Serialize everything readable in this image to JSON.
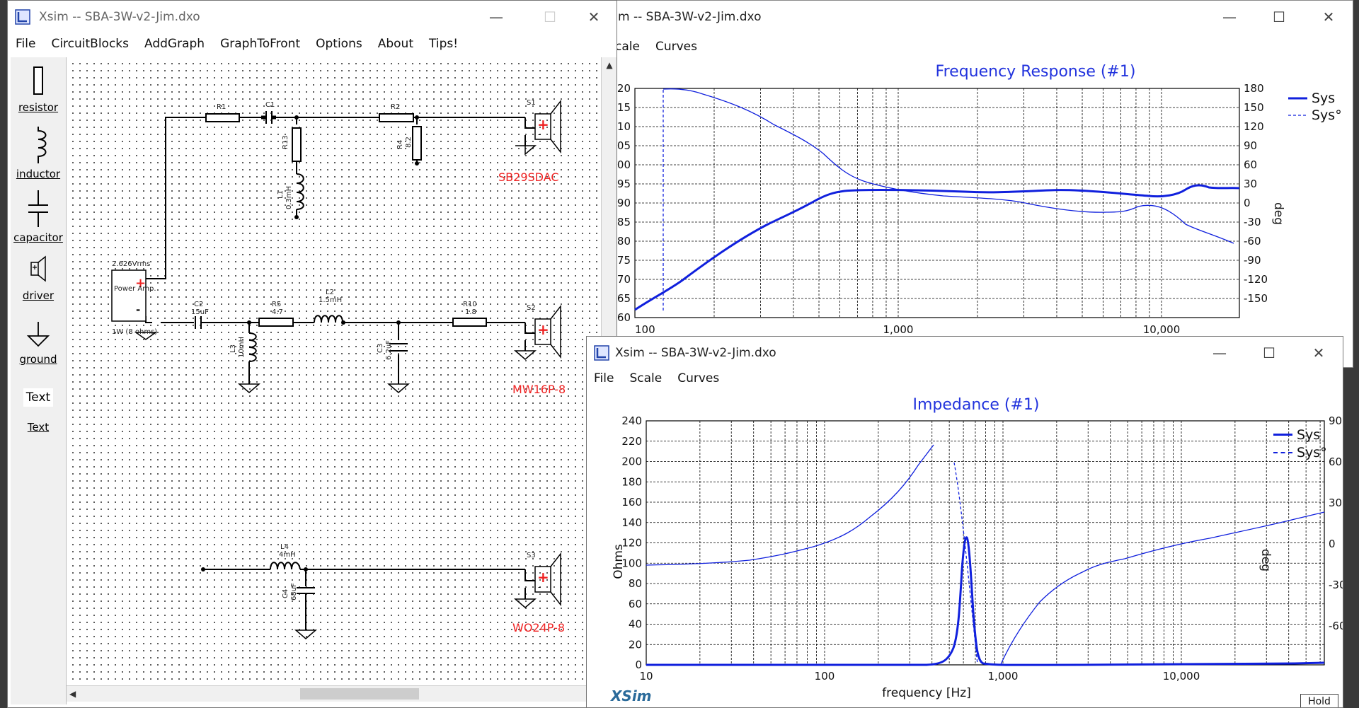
{
  "xsim_main": {
    "title": "Xsim -- SBA-3W-v2-Jim.dxo",
    "menu": [
      "File",
      "CircuitBlocks",
      "AddGraph",
      "GraphToFront",
      "Options",
      "About",
      "Tips!"
    ],
    "palette": [
      "resistor",
      "inductor",
      "capacitor",
      "driver",
      "ground",
      "Text",
      "Text"
    ],
    "schematic": {
      "r1": "R1",
      "c1": "C1",
      "r2": "R2",
      "r13": "R13",
      "l1": "L1",
      "l1_val": "0.3mH",
      "r4": "R4",
      "r4_val": "8.2",
      "s1": "S1",
      "s1_name": "SB29SDAC",
      "amp_v": "2.626Vrms",
      "amp_label": "Power Amp.",
      "amp_p": "1W (8 ohms)",
      "c2": "C2",
      "c2_val": "15uF",
      "r5": "R5",
      "r5_val": "4.7",
      "l2": "L2",
      "l2_val": "1.5mH",
      "r10": "R10",
      "r10_val": "1.8",
      "l3": "L3",
      "l3_val": "10mH",
      "c3": "C3",
      "c3_val": "6.2uF",
      "s2": "S2",
      "s2_name": "MW16P-8",
      "l4": "L4",
      "l4_val": "4mH",
      "c4": "C4",
      "c4_val": "68uF",
      "s3": "S3",
      "s3_name": "WO24P-8"
    }
  },
  "freq_window": {
    "title": "m -- SBA-3W-v2-Jim.dxo",
    "menu": [
      "cale",
      "Curves"
    ],
    "plot_title": "Frequency Response (#1)",
    "x_ticks": [
      "100",
      "1,000",
      "10,000"
    ],
    "y_left_ticks": [
      "20",
      "15",
      "10",
      "05",
      "00",
      "95",
      "90",
      "85",
      "80",
      "75",
      "70",
      "65",
      "60"
    ],
    "y_right_ticks": [
      "180",
      "150",
      "120",
      "90",
      "60",
      "30",
      "0",
      "-30",
      "-60",
      "-90",
      "-120",
      "-150"
    ],
    "right_label": "deg",
    "legend": [
      "Sys",
      "Sys°"
    ]
  },
  "imp_window": {
    "title": "Xsim -- SBA-3W-v2-Jim.dxo",
    "menu": [
      "File",
      "Scale",
      "Curves"
    ],
    "plot_title": "Impedance (#1)",
    "x_ticks": [
      "10",
      "100",
      "1,000",
      "10,000"
    ],
    "y_left_ticks": [
      "240",
      "220",
      "200",
      "180",
      "160",
      "140",
      "120",
      "100",
      "80",
      "60",
      "40",
      "20",
      "0"
    ],
    "y_right_ticks": [
      "90",
      "60",
      "30",
      "0",
      "-30",
      "-60"
    ],
    "left_label": "Ohms",
    "right_label": "deg",
    "x_label": "frequency [Hz]",
    "legend": [
      "Sys",
      "Sys°"
    ],
    "brand": "XSim",
    "hold_button": "Hold"
  },
  "colors": {
    "curve": "#1020dd",
    "accent": "#2233dd",
    "red": "#ee2222"
  }
}
